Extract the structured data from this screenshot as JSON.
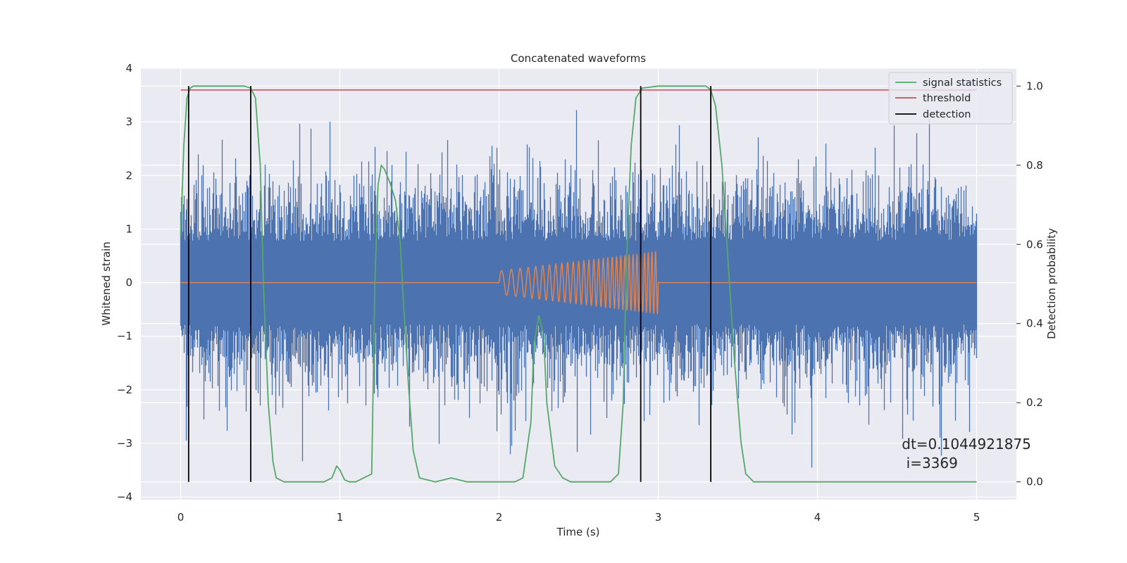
{
  "chart_data": {
    "type": "line",
    "title": "Concatenated waveforms",
    "xlabel": "Time (s)",
    "ylabel": "Whitened strain",
    "y2label": "Detection probability",
    "xlim": [
      -0.25,
      5.25
    ],
    "ylim": [
      -4.05,
      4.0
    ],
    "y2lim": [
      -0.045,
      1.045
    ],
    "x_ticks": [
      0,
      1,
      2,
      3,
      4,
      5
    ],
    "y_ticks": [
      -4,
      -3,
      -2,
      -1,
      0,
      1,
      2,
      3,
      4
    ],
    "y2_ticks": [
      0.0,
      0.2,
      0.4,
      0.6,
      0.8,
      1.0
    ],
    "grid": true,
    "legend_position": "top-right",
    "colors": {
      "background": "#eaeaf2",
      "grid": "#ffffff",
      "strain": "#4c72b0",
      "injection": "#dd8452",
      "signal_statistics": "#55a868",
      "threshold": "#c44e52",
      "detection": "#000000"
    },
    "legend": [
      {
        "label": "signal statistics",
        "color": "#55a868"
      },
      {
        "label": "threshold",
        "color": "#c44e52"
      },
      {
        "label": "detection",
        "color": "#000000"
      }
    ],
    "series": [
      {
        "name": "signal statistics",
        "axis": "right",
        "x": [
          0.0,
          0.02,
          0.04,
          0.06,
          0.08,
          0.1,
          0.15,
          0.2,
          0.3,
          0.4,
          0.44,
          0.47,
          0.5,
          0.52,
          0.55,
          0.58,
          0.6,
          0.65,
          0.7,
          0.8,
          0.9,
          0.95,
          0.98,
          1.0,
          1.03,
          1.06,
          1.1,
          1.2,
          1.22,
          1.24,
          1.26,
          1.28,
          1.3,
          1.32,
          1.35,
          1.38,
          1.4,
          1.43,
          1.46,
          1.5,
          1.6,
          1.7,
          1.8,
          1.9,
          2.0,
          2.1,
          2.15,
          2.2,
          2.22,
          2.25,
          2.28,
          2.3,
          2.35,
          2.4,
          2.45,
          2.5,
          2.6,
          2.7,
          2.75,
          2.78,
          2.8,
          2.83,
          2.86,
          2.9,
          3.0,
          3.1,
          3.2,
          3.3,
          3.33,
          3.36,
          3.4,
          3.44,
          3.48,
          3.52,
          3.55,
          3.6,
          3.7,
          4.0,
          4.5,
          5.0
        ],
        "values": [
          0.62,
          0.85,
          0.97,
          0.995,
          1.0,
          1.0,
          1.0,
          1.0,
          1.0,
          1.0,
          0.995,
          0.97,
          0.8,
          0.5,
          0.2,
          0.05,
          0.01,
          0.0,
          0.0,
          0.0,
          0.0,
          0.01,
          0.04,
          0.03,
          0.005,
          0.0,
          0.0,
          0.02,
          0.5,
          0.75,
          0.8,
          0.79,
          0.77,
          0.75,
          0.71,
          0.6,
          0.45,
          0.25,
          0.08,
          0.01,
          0.0,
          0.01,
          0.0,
          0.0,
          0.0,
          0.0,
          0.01,
          0.15,
          0.35,
          0.42,
          0.37,
          0.2,
          0.04,
          0.01,
          0.0,
          0.0,
          0.0,
          0.0,
          0.02,
          0.2,
          0.55,
          0.85,
          0.97,
          0.995,
          1.0,
          1.0,
          1.0,
          1.0,
          0.99,
          0.95,
          0.8,
          0.55,
          0.3,
          0.1,
          0.02,
          0.0,
          0.0,
          0.0,
          0.0,
          0.0
        ]
      },
      {
        "name": "threshold",
        "axis": "right",
        "x": [
          0.0,
          5.0
        ],
        "values": [
          0.99,
          0.99
        ]
      }
    ],
    "detections": [
      0.05,
      0.44,
      2.89,
      3.33
    ],
    "injection": {
      "t_start": 2.0,
      "t_end": 3.0,
      "amp_start": 0.22,
      "amp_end": 0.58,
      "f_start": 15,
      "f_end": 45
    },
    "strain": {
      "t_start": 0.0,
      "t_end": 5.0,
      "band": 0.78,
      "max": 3.65,
      "min": -3.7
    },
    "annotation": {
      "line1": "dt=0.1044921875",
      "line2": " i=3369",
      "x": 4.53,
      "y": -3.0
    }
  }
}
